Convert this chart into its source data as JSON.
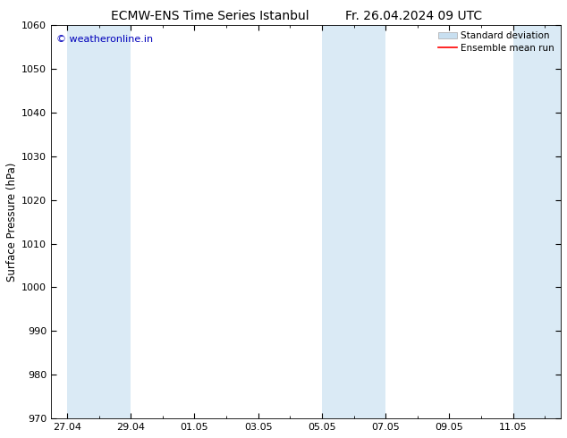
{
  "title_left": "ECMW-ENS Time Series Istanbul",
  "title_right": "Fr. 26.04.2024 09 UTC",
  "ylabel": "Surface Pressure (hPa)",
  "ylim": [
    970,
    1060
  ],
  "yticks": [
    970,
    980,
    990,
    1000,
    1010,
    1020,
    1030,
    1040,
    1050,
    1060
  ],
  "xtick_labels": [
    "27.04",
    "29.04",
    "01.05",
    "03.05",
    "05.05",
    "07.05",
    "09.05",
    "11.05"
  ],
  "xtick_positions": [
    0,
    2,
    4,
    6,
    8,
    10,
    12,
    14
  ],
  "xlim": [
    -0.5,
    15.5
  ],
  "band_color": "#daeaf5",
  "background_color": "#ffffff",
  "plot_bg_color": "#ffffff",
  "watermark_text": "© weatheronline.in",
  "watermark_color": "#0000bb",
  "legend_std_color": "#c8dff0",
  "legend_std_edge": "#aaaaaa",
  "legend_mean_color": "#ff0000",
  "title_fontsize": 10,
  "tick_fontsize": 8,
  "ylabel_fontsize": 8.5,
  "watermark_fontsize": 8,
  "legend_fontsize": 7.5,
  "band_ranges": [
    [
      0,
      2
    ],
    [
      8,
      10
    ],
    [
      14,
      16
    ]
  ]
}
